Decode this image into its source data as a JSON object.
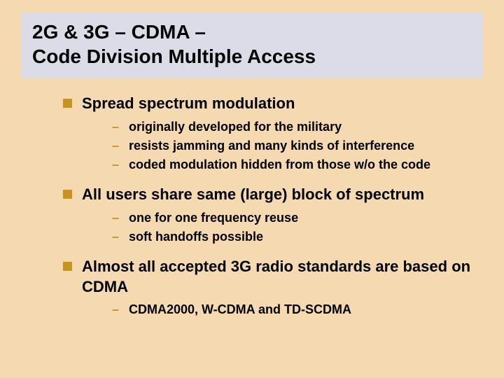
{
  "colors": {
    "background": "#f4d9b1",
    "title_bar_bg": "#dcdce8",
    "bullet_color": "#c79321",
    "text_color": "#000000"
  },
  "typography": {
    "title_fontsize": 28,
    "l1_fontsize": 22,
    "l2_fontsize": 18,
    "font_family": "Arial"
  },
  "title": {
    "line1": "2G & 3G – CDMA –",
    "line2": "Code Division Multiple Access"
  },
  "points": [
    {
      "text": "Spread spectrum modulation",
      "subs": [
        "originally developed for the military",
        "resists jamming and many kinds of interference",
        "coded modulation hidden from those w/o the code"
      ]
    },
    {
      "text": "All users share same (large) block of spectrum",
      "subs": [
        "one for one frequency reuse",
        "soft handoffs possible"
      ]
    },
    {
      "text": "Almost all accepted 3G radio standards are based on CDMA",
      "subs": [
        "CDMA2000, W-CDMA and TD-SCDMA"
      ]
    }
  ]
}
